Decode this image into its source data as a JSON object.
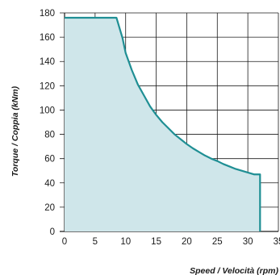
{
  "chart_data": {
    "type": "area",
    "title": "",
    "xlabel": "Speed / Velocità (rpm)",
    "ylabel": "Torque / Coppia (kNm)",
    "xlim": [
      0,
      35
    ],
    "ylim": [
      0,
      180
    ],
    "x_ticks": [
      "0",
      "5",
      "10",
      "15",
      "20",
      "25",
      "30",
      "35"
    ],
    "y_ticks": [
      "0",
      "20",
      "40",
      "60",
      "80",
      "100",
      "120",
      "140",
      "160",
      "180"
    ],
    "grid": true,
    "series": [
      {
        "x": [
          0,
          8.5,
          9.5,
          10,
          11,
          12,
          13,
          14,
          15,
          16,
          17,
          18,
          19,
          20,
          21,
          22,
          23,
          24,
          25,
          26,
          27,
          28,
          29,
          30,
          31,
          32,
          32
        ],
        "y": [
          176,
          176,
          159,
          147,
          133,
          121,
          112,
          103,
          96,
          90,
          85,
          80,
          76,
          72,
          68.5,
          65.5,
          62.5,
          60,
          58,
          55.5,
          53.5,
          51.5,
          50,
          48.5,
          47,
          47,
          0
        ]
      }
    ],
    "colors": {
      "line": "#1f8f94",
      "fill": "#cfe6ea",
      "grid": "#1a1a1a"
    }
  }
}
